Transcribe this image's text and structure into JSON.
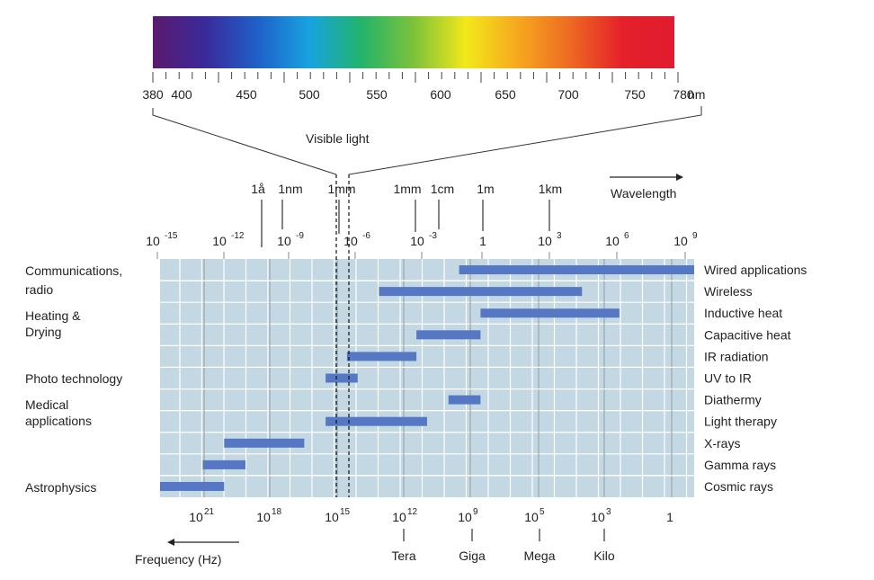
{
  "spectrum": {
    "nm_ticks": [
      "380",
      "400",
      "450",
      "500",
      "550",
      "600",
      "650",
      "700",
      "750",
      "780"
    ],
    "unit": "nm",
    "colors": [
      "#5b1a6e",
      "#3a2a9a",
      "#1f5fc8",
      "#18a3e0",
      "#22b46a",
      "#7cc23a",
      "#f2e81a",
      "#f6a81e",
      "#ee6a22",
      "#e4202a",
      "#e01c2e"
    ]
  },
  "visible_light_label": "Visible light",
  "wavelength_arrow_label": "Wavelength",
  "frequency_arrow_label": "Frequency (Hz)",
  "wavelength_units": [
    {
      "label": "1å"
    },
    {
      "label": "1nm"
    },
    {
      "label": "1mm"
    },
    {
      "label": "1mm"
    },
    {
      "label": "1cm"
    },
    {
      "label": "1m"
    },
    {
      "label": "1km"
    }
  ],
  "wavelength_powers": [
    "-15",
    "-12",
    "-9",
    "-6",
    "-3",
    "",
    "3",
    "6",
    "9"
  ],
  "wavelength_power_base": "10",
  "wavelength_one": "1",
  "frequency_ticks": [
    {
      "base": "10",
      "exp": "21"
    },
    {
      "base": "10",
      "exp": "18"
    },
    {
      "base": "10",
      "exp": "15"
    },
    {
      "base": "10",
      "exp": "12"
    },
    {
      "base": "10",
      "exp": "9"
    },
    {
      "base": "10",
      "exp": "5"
    },
    {
      "base": "10",
      "exp": "3"
    },
    {
      "base": "1",
      "exp": ""
    }
  ],
  "frequency_prefixes": [
    "Tera",
    "Giga",
    "Mega",
    "Kilo"
  ],
  "categories": [
    {
      "lines": [
        "Communications,",
        "radio"
      ]
    },
    {
      "lines": [
        "Heating &",
        "Drying"
      ]
    },
    {
      "lines": [
        "Photo technology"
      ]
    },
    {
      "lines": [
        "Medical",
        "applications"
      ]
    },
    {
      "lines": [
        "Astrophysics"
      ]
    }
  ],
  "applications": [
    {
      "name": "Wired applications",
      "start": 0.56,
      "end": 1.0
    },
    {
      "name": "Wireless",
      "start": 0.41,
      "end": 0.79
    },
    {
      "name": "Inductive heat",
      "start": 0.6,
      "end": 0.86
    },
    {
      "name": "Capacitive heat",
      "start": 0.48,
      "end": 0.6
    },
    {
      "name": "IR radiation",
      "start": 0.35,
      "end": 0.48
    },
    {
      "name": "UV to IR",
      "start": 0.31,
      "end": 0.37
    },
    {
      "name": "Diathermy",
      "start": 0.54,
      "end": 0.6
    },
    {
      "name": "Light therapy",
      "start": 0.31,
      "end": 0.5
    },
    {
      "name": "X-rays",
      "start": 0.12,
      "end": 0.27
    },
    {
      "name": "Gamma rays",
      "start": 0.08,
      "end": 0.16
    },
    {
      "name": "Cosmic rays",
      "start": 0.0,
      "end": 0.12
    }
  ],
  "colors": {
    "grid_bg": "#c3d8e3",
    "grid_line": "#ffffff",
    "bar": "#5577c4",
    "row_sep": "#8fa7b4"
  }
}
